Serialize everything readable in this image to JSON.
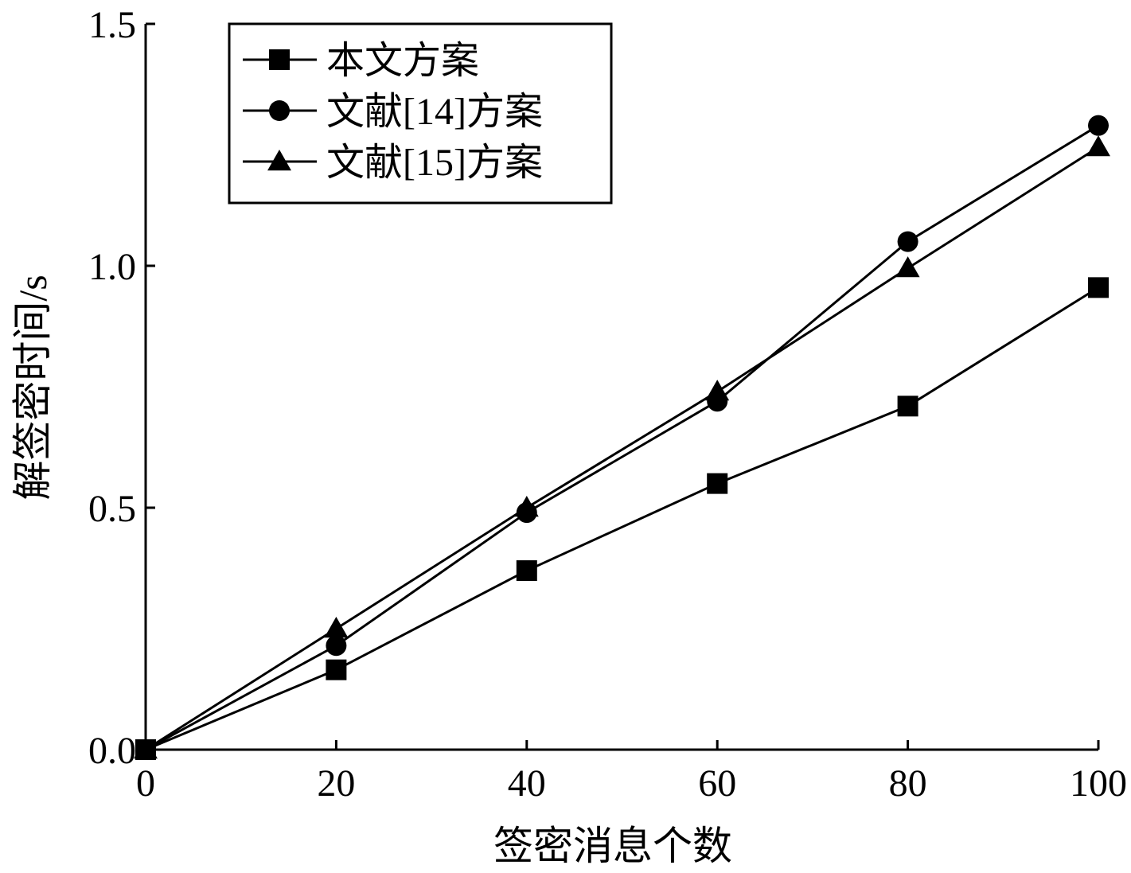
{
  "chart_data": {
    "type": "line",
    "title": "",
    "xlabel": "签密消息个数",
    "ylabel": "解签密时间/s",
    "x": [
      0,
      20,
      40,
      60,
      80,
      100
    ],
    "xlim": [
      0,
      100
    ],
    "ylim": [
      0.0,
      1.5
    ],
    "x_ticks": [
      "0",
      "20",
      "40",
      "60",
      "80",
      "100"
    ],
    "y_ticks": [
      "0.0",
      "0.5",
      "1.0",
      "1.5"
    ],
    "y_tick_values": [
      0.0,
      0.5,
      1.0,
      1.5
    ],
    "grid": false,
    "legend_position": "top-left",
    "line_color": "#000000",
    "series": [
      {
        "name": "本文方案",
        "marker": "square",
        "values": [
          0.0,
          0.165,
          0.37,
          0.55,
          0.71,
          0.955
        ]
      },
      {
        "name": "文献[14]方案",
        "marker": "circle",
        "values": [
          0.0,
          0.215,
          0.49,
          0.72,
          1.05,
          1.29
        ]
      },
      {
        "name": "文献[15]方案",
        "marker": "triangle",
        "values": [
          0.0,
          0.25,
          0.5,
          0.74,
          0.995,
          1.245
        ]
      }
    ]
  }
}
